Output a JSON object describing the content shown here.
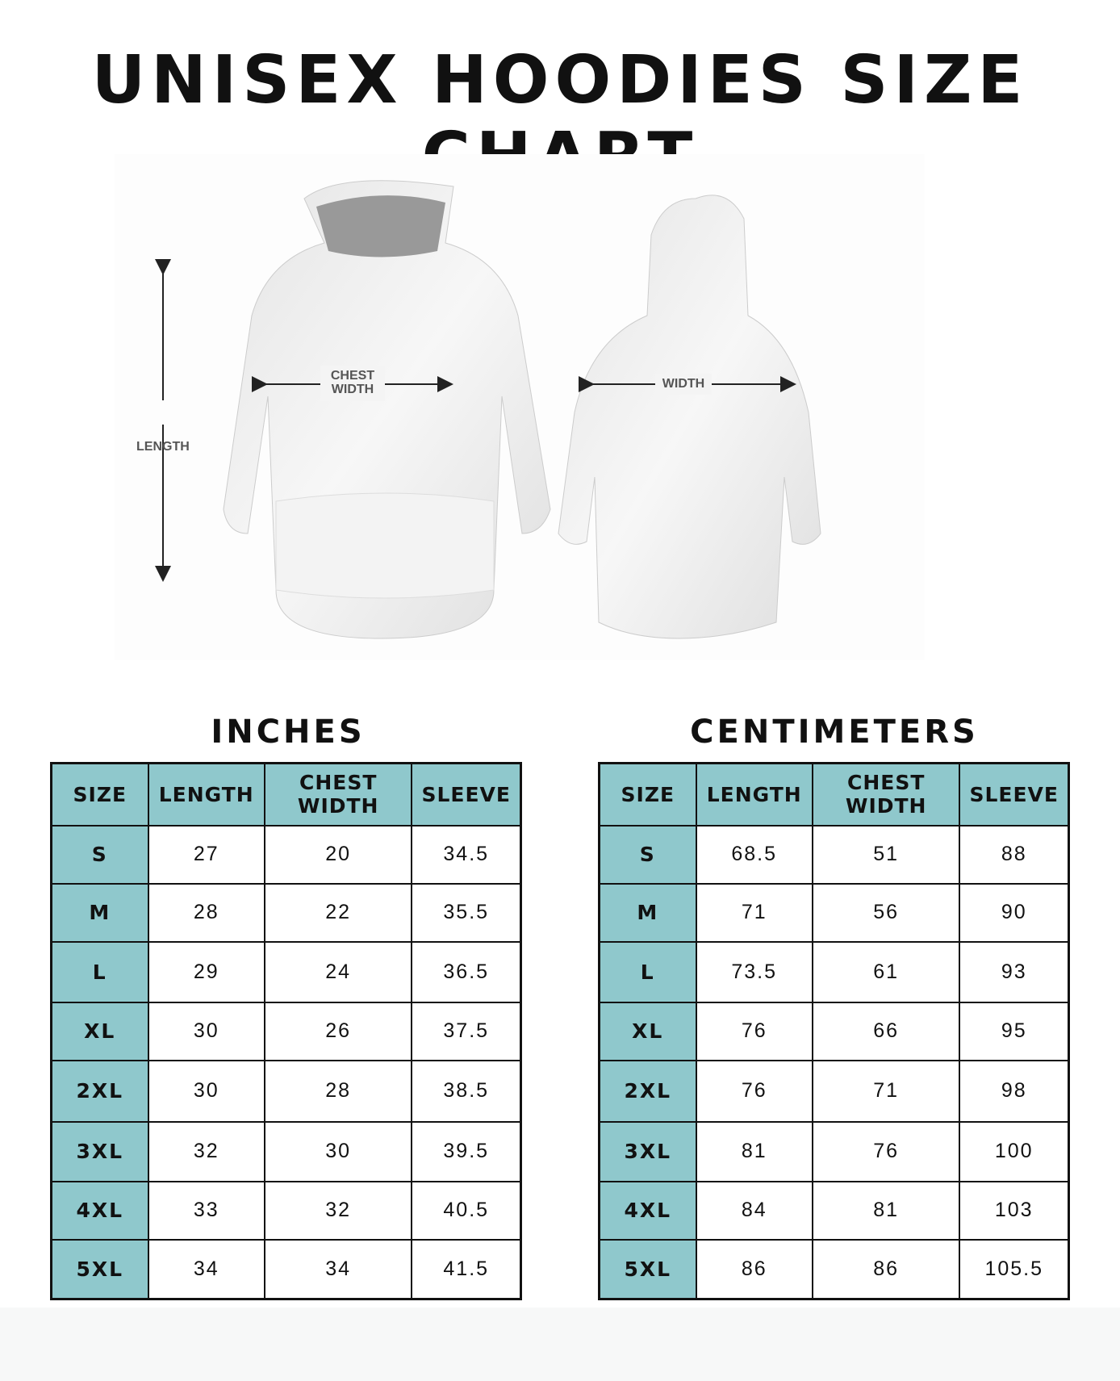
{
  "title": "UNISEX HOODIES SIZE CHART",
  "diagram": {
    "front_labels": {
      "chest": [
        "CHEST",
        "WIDTH"
      ],
      "length": "LENGTH"
    },
    "back_label": "WIDTH"
  },
  "colors": {
    "header": "#8fc8cc",
    "border": "#111111"
  },
  "tables": [
    {
      "heading": "INCHES",
      "headers": [
        "SIZE",
        "LENGTH",
        "CHEST WIDTH",
        "SLEEVE"
      ],
      "rows": [
        [
          "S",
          "27",
          "20",
          "34.5"
        ],
        [
          "M",
          "28",
          "22",
          "35.5"
        ],
        [
          "L",
          "29",
          "24",
          "36.5"
        ],
        [
          "XL",
          "30",
          "26",
          "37.5"
        ],
        [
          "2XL",
          "30",
          "28",
          "38.5"
        ],
        [
          "3XL",
          "32",
          "30",
          "39.5"
        ],
        [
          "4XL",
          "33",
          "32",
          "40.5"
        ],
        [
          "5XL",
          "34",
          "34",
          "41.5"
        ]
      ]
    },
    {
      "heading": "CENTIMETERS",
      "headers": [
        "SIZE",
        "LENGTH",
        "CHEST WIDTH",
        "SLEEVE"
      ],
      "rows": [
        [
          "S",
          "68.5",
          "51",
          "88"
        ],
        [
          "M",
          "71",
          "56",
          "90"
        ],
        [
          "L",
          "73.5",
          "61",
          "93"
        ],
        [
          "XL",
          "76",
          "66",
          "95"
        ],
        [
          "2XL",
          "76",
          "71",
          "98"
        ],
        [
          "3XL",
          "81",
          "76",
          "100"
        ],
        [
          "4XL",
          "84",
          "81",
          "103"
        ],
        [
          "5XL",
          "86",
          "86",
          "105.5"
        ]
      ]
    }
  ]
}
